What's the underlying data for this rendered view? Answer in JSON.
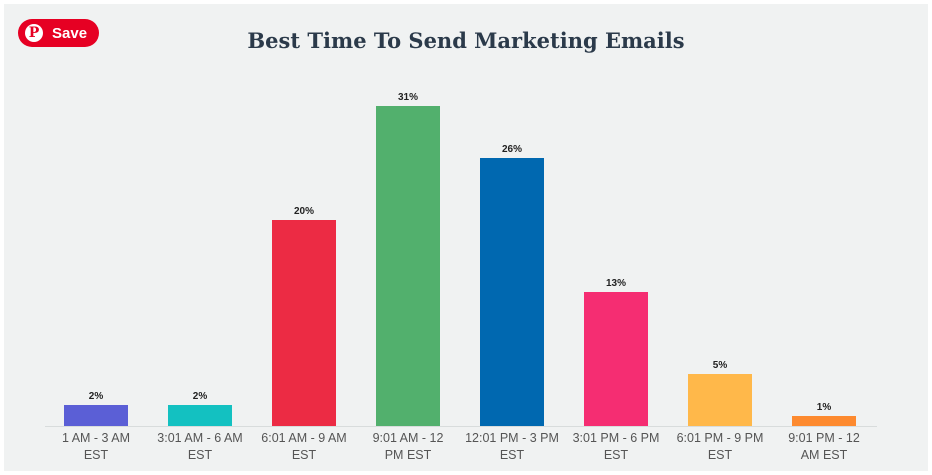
{
  "save_button": {
    "label": "Save",
    "icon": "pinterest-icon"
  },
  "chart_data": {
    "type": "bar",
    "title": "Best Time To Send Marketing Emails",
    "xlabel": "",
    "ylabel": "",
    "ylim": [
      0,
      31
    ],
    "grid": false,
    "categories": [
      "1 AM - 3 AM EST",
      "3:01 AM - 6 AM EST",
      "6:01 AM - 9 AM EST",
      "9:01 AM - 12 PM EST",
      "12:01 PM - 3 PM EST",
      "3:01 PM - 6 PM EST",
      "6:01 PM - 9 PM EST",
      "9:01 PM - 12 AM EST"
    ],
    "category_lines": [
      [
        "1 AM - 3 AM",
        "EST"
      ],
      [
        "3:01 AM - 6 AM",
        "EST"
      ],
      [
        "6:01 AM - 9 AM",
        "EST"
      ],
      [
        "9:01 AM - 12",
        "PM EST"
      ],
      [
        "12:01 PM - 3 PM",
        "EST"
      ],
      [
        "3:01 PM - 6 PM",
        "EST"
      ],
      [
        "6:01 PM - 9 PM",
        "EST"
      ],
      [
        "9:01 PM - 12",
        "AM EST"
      ]
    ],
    "values": [
      2,
      2,
      20,
      31,
      26,
      13,
      5,
      1
    ],
    "data_labels": [
      "2%",
      "2%",
      "20%",
      "31%",
      "26%",
      "13%",
      "5%",
      "1%"
    ],
    "colors": [
      "#5b5fd6",
      "#13c1c1",
      "#ec2b44",
      "#52b06d",
      "#0068b0",
      "#f52d72",
      "#ffb84a",
      "#fd8a2f"
    ]
  }
}
